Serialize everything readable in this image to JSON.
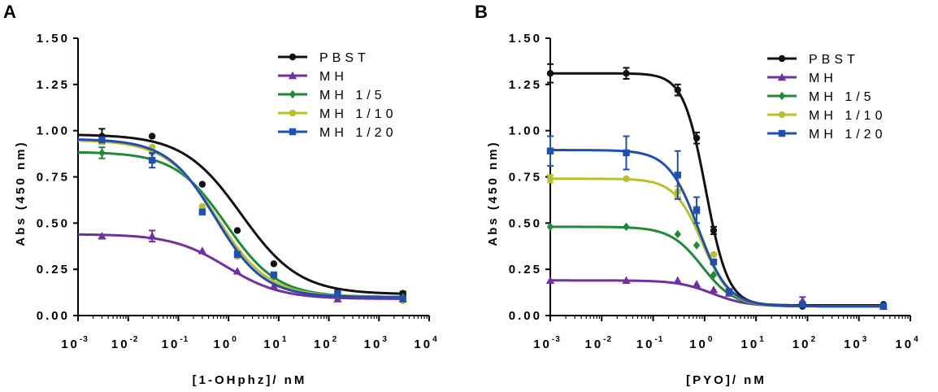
{
  "chart_data": [
    {
      "panel": "A",
      "type": "line",
      "xscale": "log",
      "xlabel": "[1-OHphz]/ nM",
      "ylabel": "Abs (450 nm)",
      "xlim": [
        -3,
        4
      ],
      "ylim": [
        0,
        1.5
      ],
      "xticks": [
        {
          "base": "10",
          "exp": "-3"
        },
        {
          "base": "10",
          "exp": "-2"
        },
        {
          "base": "10",
          "exp": "-1"
        },
        {
          "base": "10",
          "exp": "0"
        },
        {
          "base": "10",
          "exp": "1"
        },
        {
          "base": "10",
          "exp": "2"
        },
        {
          "base": "10",
          "exp": "3"
        },
        {
          "base": "10",
          "exp": "4"
        }
      ],
      "yticks": [
        "0.00",
        "0.25",
        "0.50",
        "0.75",
        "1.00",
        "1.25",
        "1.50"
      ],
      "x": [
        0.003,
        0.03,
        0.3,
        1.5,
        8,
        150,
        3000
      ],
      "series": [
        {
          "name": "PBST",
          "color": "#111111",
          "marker": "circle",
          "values": [
            0.97,
            0.97,
            0.71,
            0.46,
            0.28,
            0.13,
            0.12
          ],
          "errors": [
            0.04,
            0,
            0,
            0,
            0,
            0,
            0.01
          ],
          "fit": {
            "top": 0.98,
            "bottom": 0.115,
            "ec50": 1.8,
            "hill": 0.75
          }
        },
        {
          "name": "MH",
          "color": "#7030A0",
          "marker": "triangle",
          "values": [
            0.43,
            0.43,
            0.35,
            0.24,
            0.16,
            0.09,
            0.09
          ],
          "errors": [
            0,
            0.03,
            0,
            0,
            0,
            0,
            0
          ],
          "fit": {
            "top": 0.44,
            "bottom": 0.09,
            "ec50": 0.9,
            "hill": 0.8
          }
        },
        {
          "name": "MH 1/5",
          "color": "#1F8A3A",
          "marker": "diamond",
          "values": [
            0.88,
            0.88,
            0.57,
            0.35,
            0.21,
            0.11,
            0.1
          ],
          "errors": [
            0.03,
            0,
            0,
            0,
            0,
            0,
            0
          ],
          "fit": {
            "top": 0.885,
            "bottom": 0.1,
            "ec50": 0.9,
            "hill": 0.85
          }
        },
        {
          "name": "MH 1/10",
          "color": "#B8C02A",
          "marker": "circle",
          "values": [
            0.94,
            0.91,
            0.59,
            0.32,
            0.22,
            0.12,
            0.08
          ],
          "errors": [
            0,
            0,
            0,
            0,
            0,
            0,
            0
          ],
          "fit": {
            "top": 0.95,
            "bottom": 0.1,
            "ec50": 0.6,
            "hill": 0.85
          }
        },
        {
          "name": "MH 1/20",
          "color": "#1F4FB5",
          "marker": "square",
          "values": [
            0.95,
            0.84,
            0.56,
            0.33,
            0.22,
            0.12,
            0.09
          ],
          "errors": [
            0,
            0.04,
            0,
            0,
            0,
            0,
            0
          ],
          "fit": {
            "top": 0.955,
            "bottom": 0.1,
            "ec50": 0.55,
            "hill": 0.9
          }
        }
      ]
    },
    {
      "panel": "B",
      "type": "line",
      "xscale": "log",
      "xlabel": "[PYO]/ nM",
      "ylabel": "Abs (450 nm)",
      "xlim": [
        -3,
        4
      ],
      "ylim": [
        0,
        1.5
      ],
      "xticks": [
        {
          "base": "10",
          "exp": "-3"
        },
        {
          "base": "10",
          "exp": "-2"
        },
        {
          "base": "10",
          "exp": "-1"
        },
        {
          "base": "10",
          "exp": "0"
        },
        {
          "base": "10",
          "exp": "1"
        },
        {
          "base": "10",
          "exp": "2"
        },
        {
          "base": "10",
          "exp": "3"
        },
        {
          "base": "10",
          "exp": "4"
        }
      ],
      "yticks": [
        "0.00",
        "0.25",
        "0.50",
        "0.75",
        "1.00",
        "1.25",
        "1.50"
      ],
      "x": [
        0.001,
        0.03,
        0.3,
        0.7,
        1.5,
        3,
        80,
        3000
      ],
      "series": [
        {
          "name": "PBST",
          "color": "#111111",
          "marker": "circle",
          "values": [
            1.31,
            1.31,
            1.22,
            0.96,
            0.46,
            0.13,
            0.05,
            0.06
          ],
          "errors": [
            0.05,
            0.03,
            0.03,
            0.03,
            0.02,
            0,
            0,
            0
          ],
          "fit": {
            "top": 1.31,
            "bottom": 0.055,
            "ec50": 1.05,
            "hill": 2.0
          }
        },
        {
          "name": "MH",
          "color": "#7030A0",
          "marker": "triangle",
          "values": [
            0.19,
            0.19,
            0.19,
            0.17,
            0.14,
            0.12,
            0.08,
            0.05
          ],
          "errors": [
            0,
            0,
            0,
            0,
            0,
            0,
            0.02,
            0
          ],
          "fit": {
            "top": 0.19,
            "bottom": 0.05,
            "ec50": 1.4,
            "hill": 1.3
          }
        },
        {
          "name": "MH 1/5",
          "color": "#1F8A3A",
          "marker": "diamond",
          "values": [
            0.48,
            0.48,
            0.44,
            0.38,
            0.22,
            0.13,
            0.06,
            0.05
          ],
          "errors": [
            0,
            0,
            0,
            0,
            0,
            0,
            0,
            0
          ],
          "fit": {
            "top": 0.48,
            "bottom": 0.05,
            "ec50": 0.9,
            "hill": 1.4
          }
        },
        {
          "name": "MH 1/10",
          "color": "#B8C02A",
          "marker": "circle",
          "values": [
            0.74,
            0.74,
            0.67,
            0.57,
            0.33,
            0.13,
            0.06,
            0.05
          ],
          "errors": [
            0.02,
            0,
            0.03,
            0.02,
            0,
            0,
            0,
            0
          ],
          "fit": {
            "top": 0.74,
            "bottom": 0.05,
            "ec50": 0.9,
            "hill": 1.6
          }
        },
        {
          "name": "MH 1/20",
          "color": "#1F4FB5",
          "marker": "square",
          "values": [
            0.89,
            0.88,
            0.76,
            0.57,
            0.29,
            0.13,
            0.06,
            0.05
          ],
          "errors": [
            0.08,
            0.09,
            0.13,
            0.07,
            0,
            0,
            0,
            0
          ],
          "fit": {
            "top": 0.895,
            "bottom": 0.05,
            "ec50": 0.75,
            "hill": 1.5
          }
        }
      ]
    }
  ],
  "panels": [
    {
      "label": "A"
    },
    {
      "label": "B"
    }
  ]
}
